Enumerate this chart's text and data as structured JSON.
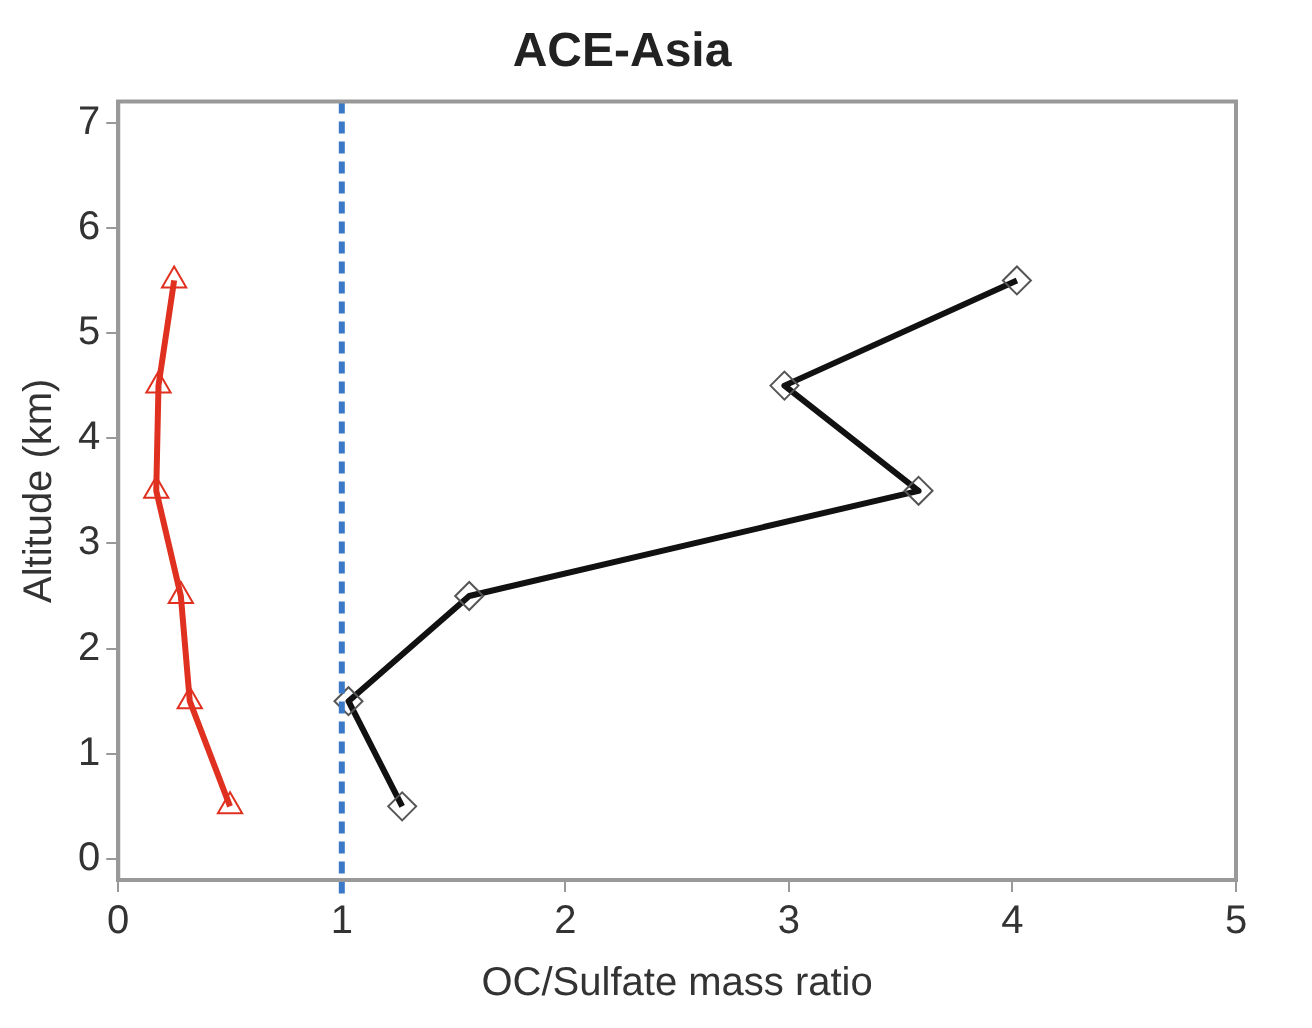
{
  "chart_data": {
    "type": "line",
    "title": "ACE-Asia",
    "xlabel": "OC/Sulfate mass ratio",
    "ylabel": "Altitude (km)",
    "xlim": [
      0,
      5
    ],
    "xticks": [
      0,
      1,
      2,
      3,
      4,
      5
    ],
    "ylim": [
      -0.2,
      7.2
    ],
    "yticks": [
      0,
      1,
      2,
      3,
      4,
      5,
      6,
      7
    ],
    "grid": false,
    "legend": false,
    "series": [
      {
        "color": "#e03020",
        "marker": "triangle",
        "x": [
          0.5,
          0.32,
          0.28,
          0.17,
          0.18,
          0.25
        ],
        "values": [
          0.5,
          1.5,
          2.5,
          3.5,
          4.5,
          5.5
        ]
      },
      {
        "color": "#111111",
        "marker": "diamond",
        "x": [
          1.27,
          1.03,
          1.57,
          3.58,
          2.98,
          4.02
        ],
        "values": [
          0.5,
          1.5,
          2.5,
          3.5,
          4.5,
          5.5
        ]
      }
    ],
    "ref_lines": [
      {
        "axis": "x",
        "value": 1,
        "color": "#3a78c8",
        "line_style": "dashed"
      }
    ]
  }
}
